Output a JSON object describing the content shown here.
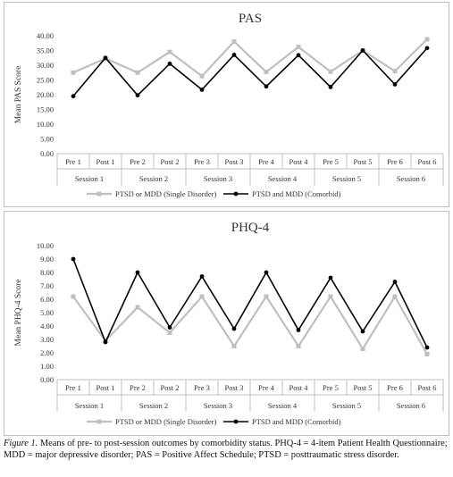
{
  "chart_data": [
    {
      "type": "line",
      "title": "PAS",
      "ylabel": "Mean PAS Score",
      "xlabel": "",
      "ylim": [
        0,
        40
      ],
      "ytick_step": 5,
      "ytick_decimals": 2,
      "categories": [
        "Pre 1",
        "Post 1",
        "Pre 2",
        "Post 2",
        "Pre 3",
        "Post 3",
        "Pre 4",
        "Post 4",
        "Pre 5",
        "Post 5",
        "Pre 6",
        "Post 6"
      ],
      "groups": [
        "Session 1",
        "Session 2",
        "Session 3",
        "Session 4",
        "Session 5",
        "Session 6"
      ],
      "series": [
        {
          "name": "PTSD or MDD (Single Disorder)",
          "color": "#bfbfbf",
          "marker": "square",
          "values": [
            27.5,
            32.3,
            27.5,
            34.5,
            26.3,
            38.0,
            27.7,
            36.2,
            27.8,
            35.0,
            28.0,
            38.8
          ]
        },
        {
          "name": "PTSD and MDD (Comorbid)",
          "color": "#000000",
          "marker": "circle",
          "values": [
            19.5,
            32.5,
            19.8,
            30.5,
            21.7,
            33.5,
            22.8,
            33.4,
            22.6,
            35.0,
            23.5,
            35.8
          ]
        }
      ],
      "legend_position": "bottom",
      "grid": false
    },
    {
      "type": "line",
      "title": "PHQ-4",
      "ylabel": "Mean PHQ-4 Score",
      "xlabel": "",
      "ylim": [
        0,
        10
      ],
      "ytick_step": 1,
      "ytick_decimals": 2,
      "categories": [
        "Pre 1",
        "Post 1",
        "Pre 2",
        "Post 2",
        "Pre 3",
        "Post 3",
        "Pre 4",
        "Post 4",
        "Pre 5",
        "Post 5",
        "Pre 6",
        "Post 6"
      ],
      "groups": [
        "Session 1",
        "Session 2",
        "Session 3",
        "Session 4",
        "Session 5",
        "Session 6"
      ],
      "series": [
        {
          "name": "PTSD or MDD (Single Disorder)",
          "color": "#bfbfbf",
          "marker": "square",
          "values": [
            6.2,
            2.9,
            5.4,
            3.5,
            6.2,
            2.5,
            6.2,
            2.5,
            6.2,
            2.3,
            6.2,
            1.9
          ]
        },
        {
          "name": "PTSD and MDD (Comorbid)",
          "color": "#000000",
          "marker": "circle",
          "values": [
            9.0,
            2.8,
            8.0,
            3.9,
            7.7,
            3.8,
            8.0,
            3.7,
            7.6,
            3.6,
            7.3,
            2.4
          ]
        }
      ],
      "legend_position": "bottom",
      "grid": false
    }
  ],
  "caption": {
    "label": "Figure 1.",
    "text": " Means of pre- to post-session outcomes by comorbidity status. PHQ-4 = 4-item Patient Health Questionnaire; MDD = major depressive disorder; PAS = Positive Affect Schedule; PTSD = posttraumatic stress disorder."
  }
}
